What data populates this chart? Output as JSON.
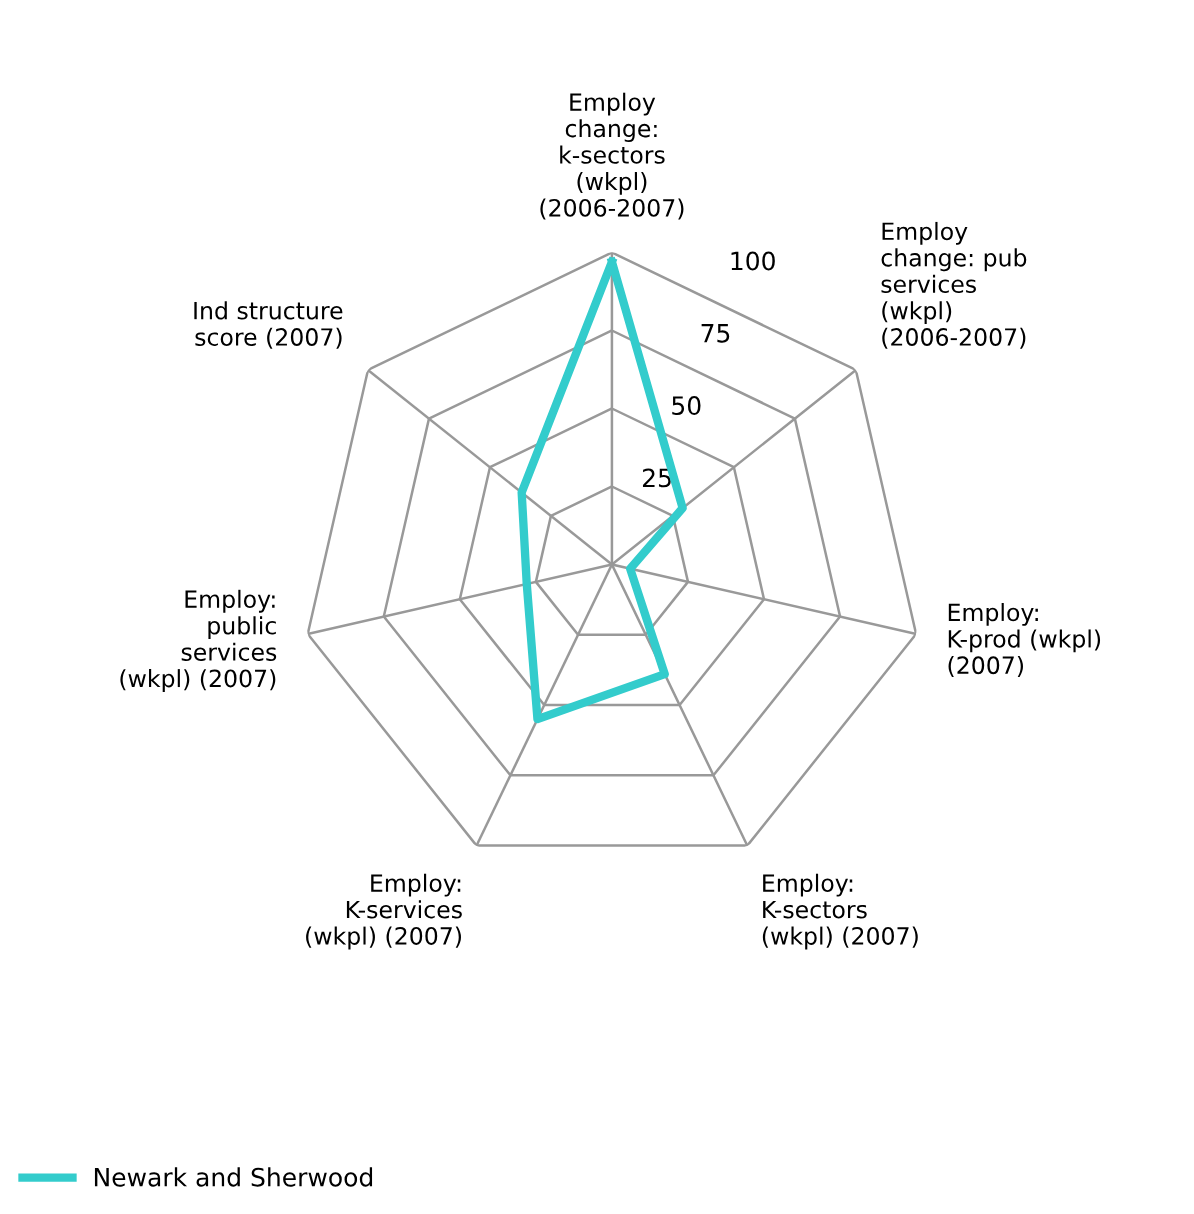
{
  "chart_data": {
    "type": "radar",
    "categories": [
      "Employ\nchange:\nk-sectors\n(wkpl)\n(2006-2007)",
      "Employ\nchange: pub\nservices\n(wkpl)\n(2006-2007)",
      "Employ:\nK-prod (wkpl)\n(2007)",
      "Employ:\nK-sectors\n(wkpl) (2007)",
      "Employ:\nK-services\n(wkpl) (2007)",
      "Employ:\npublic\nservices\n(wkpl) (2007)",
      "Ind structure\nscore (2007)"
    ],
    "series": [
      {
        "name": "Newark and Sherwood",
        "color": "#33cccc",
        "values": [
          97,
          29,
          6,
          39,
          55,
          28,
          37
        ]
      }
    ],
    "ylim": [
      0,
      100
    ],
    "yticks": [
      25,
      50,
      75,
      100
    ],
    "grid": true,
    "legend": "bottom left",
    "marker": "none",
    "line_style": "solid"
  }
}
